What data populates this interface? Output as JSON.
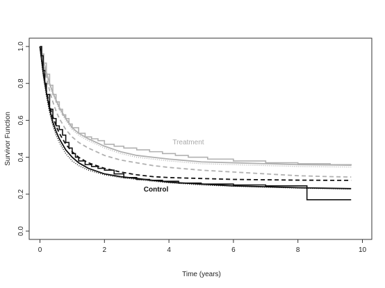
{
  "chart_data": {
    "type": "line",
    "title": "",
    "xlabel": "Time (years)",
    "ylabel": "Survivor Function",
    "xlim": [
      0,
      10
    ],
    "ylim": [
      0,
      1.0
    ],
    "xticks": [
      "0",
      "2",
      "4",
      "6",
      "8",
      "10"
    ],
    "yticks": [
      "0.0",
      "0.2",
      "0.4",
      "0.6",
      "0.8",
      "1.0"
    ],
    "grid": false,
    "annotations": [
      {
        "text": "Treatment",
        "x": 4.6,
        "y": 0.47,
        "color": "#aaaaaa",
        "bold": false
      },
      {
        "text": "Control",
        "x": 3.6,
        "y": 0.215,
        "color": "#111111",
        "bold": true
      }
    ],
    "series": [
      {
        "group": "treatment",
        "style": "km-step",
        "color": "#b0b0b0",
        "dash": "",
        "x": [
          0,
          0.06,
          0.12,
          0.2,
          0.3,
          0.4,
          0.5,
          0.6,
          0.7,
          0.8,
          0.9,
          1.0,
          1.2,
          1.4,
          1.6,
          1.8,
          2.0,
          2.3,
          2.6,
          3.0,
          3.4,
          3.8,
          4.2,
          4.6,
          5.2,
          6.0,
          7.0,
          8.0,
          9.0,
          9.65
        ],
        "y": [
          1.0,
          0.96,
          0.91,
          0.85,
          0.79,
          0.74,
          0.7,
          0.66,
          0.63,
          0.61,
          0.58,
          0.56,
          0.53,
          0.51,
          0.5,
          0.49,
          0.47,
          0.46,
          0.45,
          0.44,
          0.43,
          0.42,
          0.41,
          0.4,
          0.39,
          0.38,
          0.37,
          0.365,
          0.36,
          0.355
        ]
      },
      {
        "group": "treatment",
        "style": "smooth",
        "color": "#b0b0b0",
        "dash": "",
        "x": [
          0,
          0.05,
          0.1,
          0.2,
          0.3,
          0.4,
          0.5,
          0.6,
          0.8,
          1.0,
          1.2,
          1.5,
          2.0,
          2.5,
          3.0,
          3.5,
          4.0,
          5.0,
          6.0,
          7.0,
          8.0,
          9.0,
          9.65
        ],
        "y": [
          1.0,
          0.97,
          0.93,
          0.86,
          0.8,
          0.75,
          0.71,
          0.67,
          0.61,
          0.56,
          0.53,
          0.5,
          0.46,
          0.43,
          0.41,
          0.4,
          0.39,
          0.375,
          0.37,
          0.365,
          0.36,
          0.358,
          0.357
        ]
      },
      {
        "group": "treatment",
        "style": "dotted",
        "color": "#b0b0b0",
        "dash": "1 2",
        "x": [
          0,
          0.05,
          0.1,
          0.2,
          0.3,
          0.4,
          0.5,
          0.6,
          0.8,
          1.0,
          1.2,
          1.5,
          2.0,
          2.5,
          3.0,
          3.5,
          4.0,
          5.0,
          6.0,
          7.0,
          8.0,
          9.0,
          9.65
        ],
        "y": [
          1.0,
          0.97,
          0.92,
          0.85,
          0.79,
          0.74,
          0.7,
          0.66,
          0.6,
          0.55,
          0.52,
          0.49,
          0.45,
          0.42,
          0.4,
          0.39,
          0.38,
          0.365,
          0.36,
          0.355,
          0.35,
          0.348,
          0.347
        ]
      },
      {
        "group": "treatment",
        "style": "dashed",
        "color": "#b0b0b0",
        "dash": "6 4",
        "x": [
          0,
          0.05,
          0.1,
          0.2,
          0.3,
          0.4,
          0.5,
          0.6,
          0.8,
          1.0,
          1.2,
          1.5,
          2.0,
          2.5,
          3.0,
          3.5,
          4.0,
          5.0,
          6.0,
          7.0,
          8.0,
          9.0,
          9.65
        ],
        "y": [
          1.0,
          0.96,
          0.91,
          0.83,
          0.76,
          0.7,
          0.65,
          0.61,
          0.55,
          0.51,
          0.48,
          0.45,
          0.41,
          0.385,
          0.37,
          0.355,
          0.345,
          0.33,
          0.32,
          0.31,
          0.3,
          0.295,
          0.293
        ]
      },
      {
        "group": "control",
        "style": "km-step",
        "color": "#111111",
        "dash": "",
        "x": [
          0,
          0.05,
          0.1,
          0.15,
          0.2,
          0.3,
          0.4,
          0.5,
          0.6,
          0.7,
          0.8,
          0.9,
          1.0,
          1.1,
          1.2,
          1.4,
          1.6,
          1.8,
          2.0,
          2.3,
          2.6,
          3.0,
          3.4,
          3.8,
          4.3,
          5.0,
          6.0,
          7.0,
          8.28,
          9.65
        ],
        "y": [
          1.0,
          0.95,
          0.87,
          0.8,
          0.74,
          0.66,
          0.61,
          0.57,
          0.55,
          0.52,
          0.48,
          0.45,
          0.42,
          0.4,
          0.38,
          0.36,
          0.35,
          0.34,
          0.33,
          0.31,
          0.29,
          0.28,
          0.275,
          0.27,
          0.26,
          0.255,
          0.25,
          0.245,
          0.17,
          0.17
        ]
      },
      {
        "group": "control",
        "style": "smooth",
        "color": "#111111",
        "dash": "",
        "x": [
          0,
          0.05,
          0.1,
          0.2,
          0.3,
          0.4,
          0.5,
          0.6,
          0.8,
          1.0,
          1.2,
          1.5,
          2.0,
          2.5,
          3.0,
          3.5,
          4.0,
          5.0,
          6.0,
          7.0,
          8.0,
          9.0,
          9.65
        ],
        "y": [
          1.0,
          0.93,
          0.86,
          0.75,
          0.66,
          0.59,
          0.54,
          0.5,
          0.44,
          0.4,
          0.37,
          0.34,
          0.31,
          0.295,
          0.285,
          0.275,
          0.265,
          0.255,
          0.245,
          0.24,
          0.235,
          0.232,
          0.23
        ]
      },
      {
        "group": "control",
        "style": "dotted",
        "color": "#111111",
        "dash": "1 2",
        "x": [
          0,
          0.05,
          0.1,
          0.2,
          0.3,
          0.4,
          0.5,
          0.6,
          0.8,
          1.0,
          1.2,
          1.5,
          2.0,
          2.5,
          3.0,
          3.5,
          4.0,
          5.0,
          6.0,
          7.0,
          8.0,
          9.0,
          9.65
        ],
        "y": [
          1.0,
          0.92,
          0.84,
          0.73,
          0.64,
          0.57,
          0.52,
          0.48,
          0.42,
          0.38,
          0.355,
          0.33,
          0.305,
          0.29,
          0.28,
          0.27,
          0.262,
          0.25,
          0.243,
          0.238,
          0.233,
          0.23,
          0.228
        ]
      },
      {
        "group": "control",
        "style": "dashed",
        "color": "#111111",
        "dash": "6 4",
        "x": [
          0,
          0.05,
          0.1,
          0.2,
          0.3,
          0.4,
          0.5,
          0.6,
          0.8,
          1.0,
          1.2,
          1.5,
          2.0,
          2.5,
          3.0,
          3.5,
          4.0,
          5.0,
          6.0,
          7.0,
          8.0,
          9.0,
          9.65
        ],
        "y": [
          1.0,
          0.93,
          0.86,
          0.76,
          0.68,
          0.62,
          0.57,
          0.53,
          0.47,
          0.43,
          0.4,
          0.37,
          0.34,
          0.32,
          0.305,
          0.295,
          0.29,
          0.285,
          0.28,
          0.278,
          0.276,
          0.275,
          0.275
        ]
      }
    ]
  }
}
